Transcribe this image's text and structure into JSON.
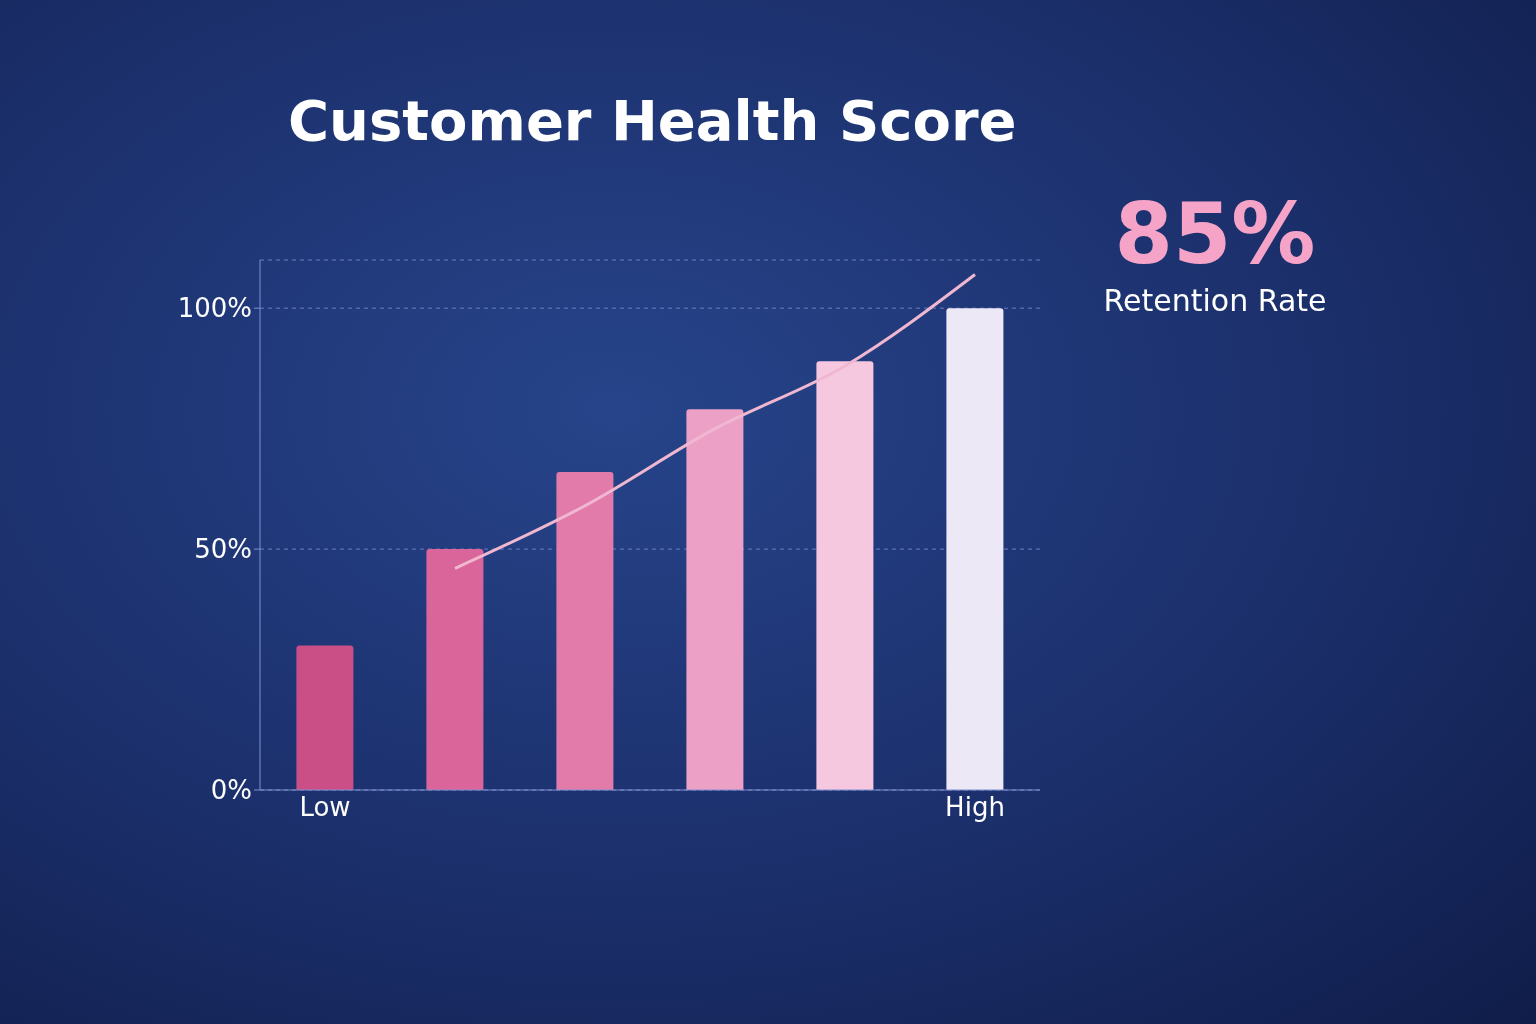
{
  "chart_data": {
    "type": "bar",
    "title": "Customer Health Score",
    "categories": [
      "Low",
      null,
      null,
      null,
      null,
      "High"
    ],
    "series": [
      {
        "colors": [
          "#c94f86",
          "#d9659a",
          "#e27aaa",
          "#eca0c6",
          "#f5c8e0",
          "#ece8f5"
        ],
        "values": [
          30,
          50,
          66,
          79,
          89,
          100
        ]
      },
      {
        "type": "line",
        "color": "#f0b8d0",
        "values": [
          null,
          46,
          59,
          75,
          88,
          107
        ]
      }
    ],
    "ylim": [
      0,
      110
    ],
    "yticks": [
      {
        "value": 0,
        "label": "0%"
      },
      {
        "value": 50,
        "label": "50%"
      },
      {
        "value": 100,
        "label": "100%"
      }
    ],
    "grid": "y",
    "legend": false,
    "marker": "none",
    "line_style": "solid",
    "annotations": [
      "85%",
      "Retention Rate"
    ]
  }
}
